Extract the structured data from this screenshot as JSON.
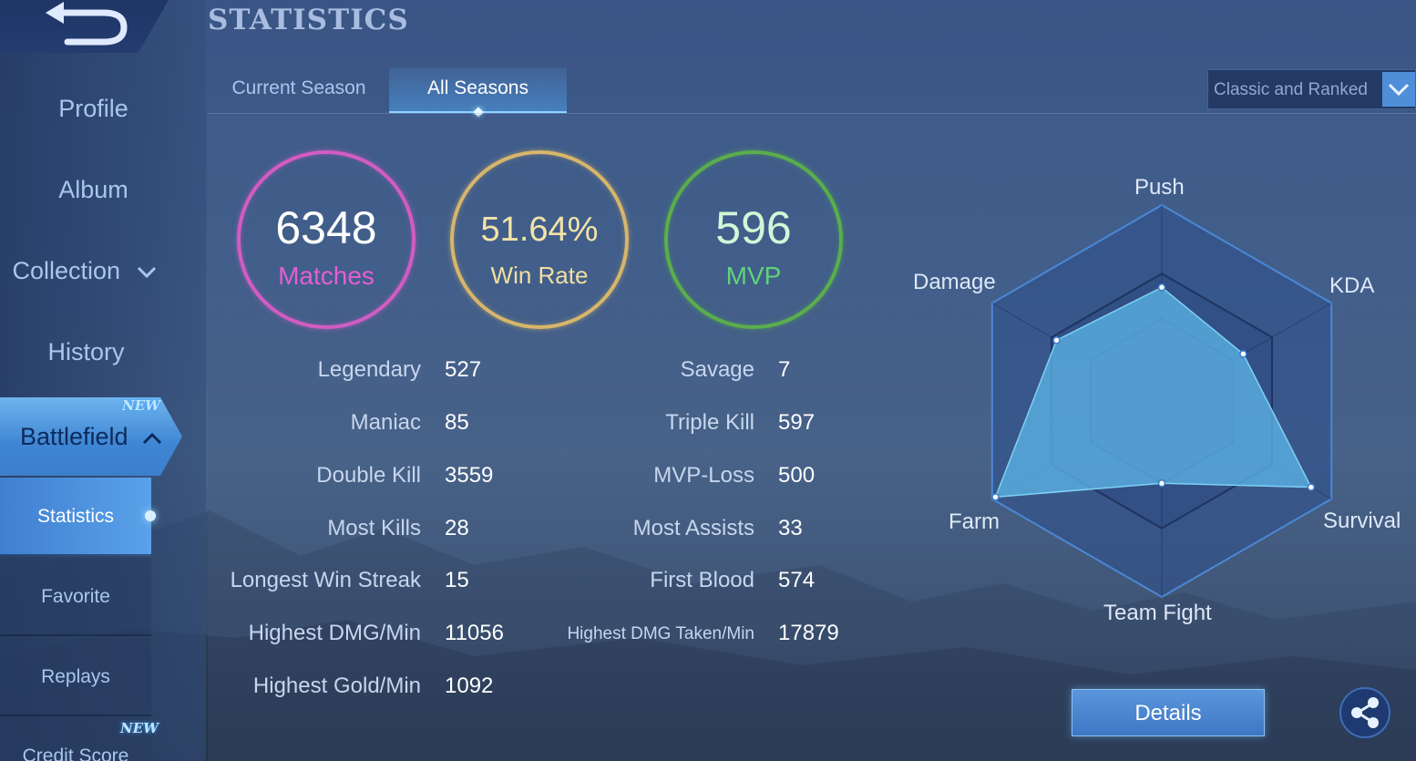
{
  "header": {
    "title": "STATISTICS"
  },
  "sidebar": {
    "items": [
      {
        "label": "Profile"
      },
      {
        "label": "Album"
      },
      {
        "label": "Collection"
      },
      {
        "label": "History"
      }
    ],
    "active_group": {
      "label": "Battlefield",
      "badge": "NEW"
    },
    "sub_items": [
      {
        "label": "Statistics"
      },
      {
        "label": "Favorite"
      },
      {
        "label": "Replays"
      },
      {
        "label": "Credit Score",
        "badge": "NEW"
      }
    ]
  },
  "tabs": [
    {
      "label": "Current Season"
    },
    {
      "label": "All Seasons"
    }
  ],
  "active_tab": "All Seasons",
  "mode_select": {
    "value": "Classic and Ranked"
  },
  "summary": {
    "matches": {
      "value": "6348",
      "label": "Matches"
    },
    "win_rate": {
      "value": "51.64%",
      "label": "Win Rate"
    },
    "mvp": {
      "value": "596",
      "label": "MVP"
    }
  },
  "stats_left": [
    {
      "label": "Legendary",
      "value": "527"
    },
    {
      "label": "Maniac",
      "value": "85"
    },
    {
      "label": "Double Kill",
      "value": "3559"
    },
    {
      "label": "Most Kills",
      "value": "28"
    },
    {
      "label": "Longest Win Streak",
      "value": "15"
    },
    {
      "label": "Highest DMG/Min",
      "value": "11056"
    },
    {
      "label": "Highest Gold/Min",
      "value": "1092"
    }
  ],
  "stats_right": [
    {
      "label": "Savage",
      "value": "7"
    },
    {
      "label": "Triple Kill",
      "value": "597"
    },
    {
      "label": "MVP-Loss",
      "value": "500"
    },
    {
      "label": "Most Assists",
      "value": "33"
    },
    {
      "label": "First Blood",
      "value": "574"
    },
    {
      "label": "Highest DMG Taken/Min",
      "value": "17879"
    }
  ],
  "radar": {
    "axes": [
      {
        "label": "Push",
        "value": 0.58
      },
      {
        "label": "KDA",
        "value": 0.48
      },
      {
        "label": "Survival",
        "value": 0.88
      },
      {
        "label": "Team Fight",
        "value": 0.42
      },
      {
        "label": "Farm",
        "value": 0.98
      },
      {
        "label": "Damage",
        "value": 0.62
      }
    ]
  },
  "buttons": {
    "details": "Details"
  },
  "colors": {
    "matches": "#d25cc3",
    "win_rate": "#d7b66a",
    "mvp": "#5aae4c",
    "radar_fill": "#5cb4e6",
    "accent": "#4f8ed8"
  },
  "icons": {
    "back": "back-arrow-icon",
    "share": "share-icon",
    "dropdown": "chevron-down-icon"
  }
}
